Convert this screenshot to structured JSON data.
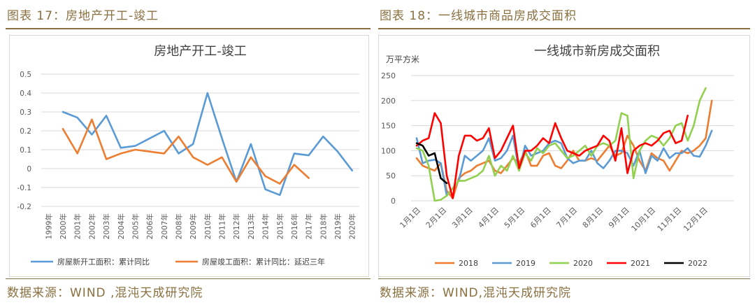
{
  "left": {
    "caption": "图表 17：房地产开工-竣工",
    "source": "数据来源：WIND ,混沌天成研究院"
  },
  "right": {
    "caption": "图表 18：一线城市商品房成交面积",
    "source": "数据来源：WIND,混沌天成研究院"
  },
  "chart_data": [
    {
      "type": "line",
      "title": "房地产开工-竣工",
      "xlabel": "",
      "ylabel": "",
      "ylim": [
        -0.2,
        0.5
      ],
      "yticks": [
        "-0.2",
        "-0.1",
        "0",
        "0.1",
        "0.2",
        "0.3",
        "0.4",
        "0.5"
      ],
      "categories": [
        "1999年",
        "2000年",
        "2001年",
        "2002年",
        "2003年",
        "2004年",
        "2005年",
        "2006年",
        "2007年",
        "2008年",
        "2009年",
        "2010年",
        "2011年",
        "2012年",
        "2013年",
        "2014年",
        "2015年",
        "2016年",
        "2017年",
        "2018年",
        "2019年",
        "2020年"
      ],
      "series": [
        {
          "name": "房屋新开工面积：累计同比",
          "color": "#5b9bd5",
          "values": [
            null,
            0.3,
            0.27,
            0.18,
            0.28,
            0.11,
            0.12,
            0.16,
            0.2,
            0.08,
            0.13,
            0.4,
            0.16,
            -0.07,
            0.13,
            -0.11,
            -0.14,
            0.08,
            0.07,
            0.17,
            0.09,
            -0.01
          ]
        },
        {
          "name": "房屋竣工面积：累计同比：延迟三年",
          "color": "#ed7d31",
          "values": [
            null,
            0.21,
            0.08,
            0.26,
            0.05,
            0.08,
            0.1,
            0.09,
            0.08,
            0.17,
            0.06,
            0.02,
            0.06,
            -0.07,
            0.06,
            -0.04,
            -0.08,
            0.02,
            -0.05,
            null,
            null,
            null
          ]
        }
      ],
      "legend_position": "bottom"
    },
    {
      "type": "line",
      "title": "一线城市新房成交面积",
      "unit_label": "万平方米",
      "ylim": [
        0,
        250
      ],
      "yticks": [
        "0",
        "50",
        "100",
        "150",
        "200",
        "250"
      ],
      "x_tick_labels": [
        "1月1日",
        "2月1日",
        "3月1日",
        "4月1日",
        "5月1日",
        "6月1日",
        "7月1日",
        "8月1日",
        "9月1日",
        "10月1日",
        "11月1日",
        "12月1日"
      ],
      "x_unit": "week",
      "x_max": 52,
      "series": [
        {
          "name": "2018",
          "color": "#ed7d31",
          "values": [
            85,
            70,
            65,
            60,
            75,
            20,
            5,
            45,
            55,
            60,
            70,
            75,
            80,
            60,
            55,
            70,
            85,
            75,
            100,
            70,
            70,
            90,
            95,
            70,
            65,
            80,
            100,
            80,
            80,
            85,
            80,
            95,
            110,
            90,
            95,
            130,
            110,
            80,
            60,
            95,
            85,
            80,
            60,
            80,
            100,
            95,
            100,
            110,
            125,
            200
          ]
        },
        {
          "name": "2019",
          "color": "#5b9bd5",
          "values": [
            125,
            75,
            80,
            82,
            75,
            10,
            25,
            40,
            90,
            80,
            90,
            100,
            125,
            80,
            85,
            100,
            130,
            60,
            110,
            90,
            95,
            100,
            115,
            120,
            115,
            85,
            75,
            80,
            80,
            100,
            75,
            65,
            80,
            100,
            100,
            95,
            70,
            100,
            55,
            90,
            80,
            105,
            85,
            95,
            95,
            105,
            90,
            88,
            110,
            140
          ]
        },
        {
          "name": "2020",
          "color": "#92d050",
          "values": [
            105,
            100,
            70,
            0,
            2,
            10,
            25,
            40,
            40,
            45,
            50,
            60,
            90,
            50,
            70,
            60,
            90,
            60,
            95,
            80,
            105,
            95,
            110,
            115,
            100,
            85,
            90,
            100,
            110,
            90,
            110,
            115,
            110,
            120,
            175,
            170,
            45,
            100,
            120,
            130,
            125,
            110,
            125,
            150,
            155,
            120,
            150,
            200,
            225
          ]
        },
        {
          "name": "2021",
          "color": "#ff0000",
          "values": [
            110,
            120,
            125,
            175,
            155,
            50,
            5,
            90,
            130,
            130,
            120,
            125,
            145,
            85,
            100,
            125,
            150,
            65,
            100,
            100,
            110,
            125,
            115,
            155,
            125,
            100,
            95,
            90,
            100,
            105,
            110,
            130,
            120,
            80,
            145,
            55,
            100,
            110,
            115,
            110,
            120,
            135,
            140,
            115,
            120,
            170
          ]
        },
        {
          "name": "2022",
          "color": "#000000",
          "values": [
            115,
            110,
            90,
            95,
            45,
            35
          ]
        }
      ],
      "legend_position": "bottom"
    }
  ]
}
